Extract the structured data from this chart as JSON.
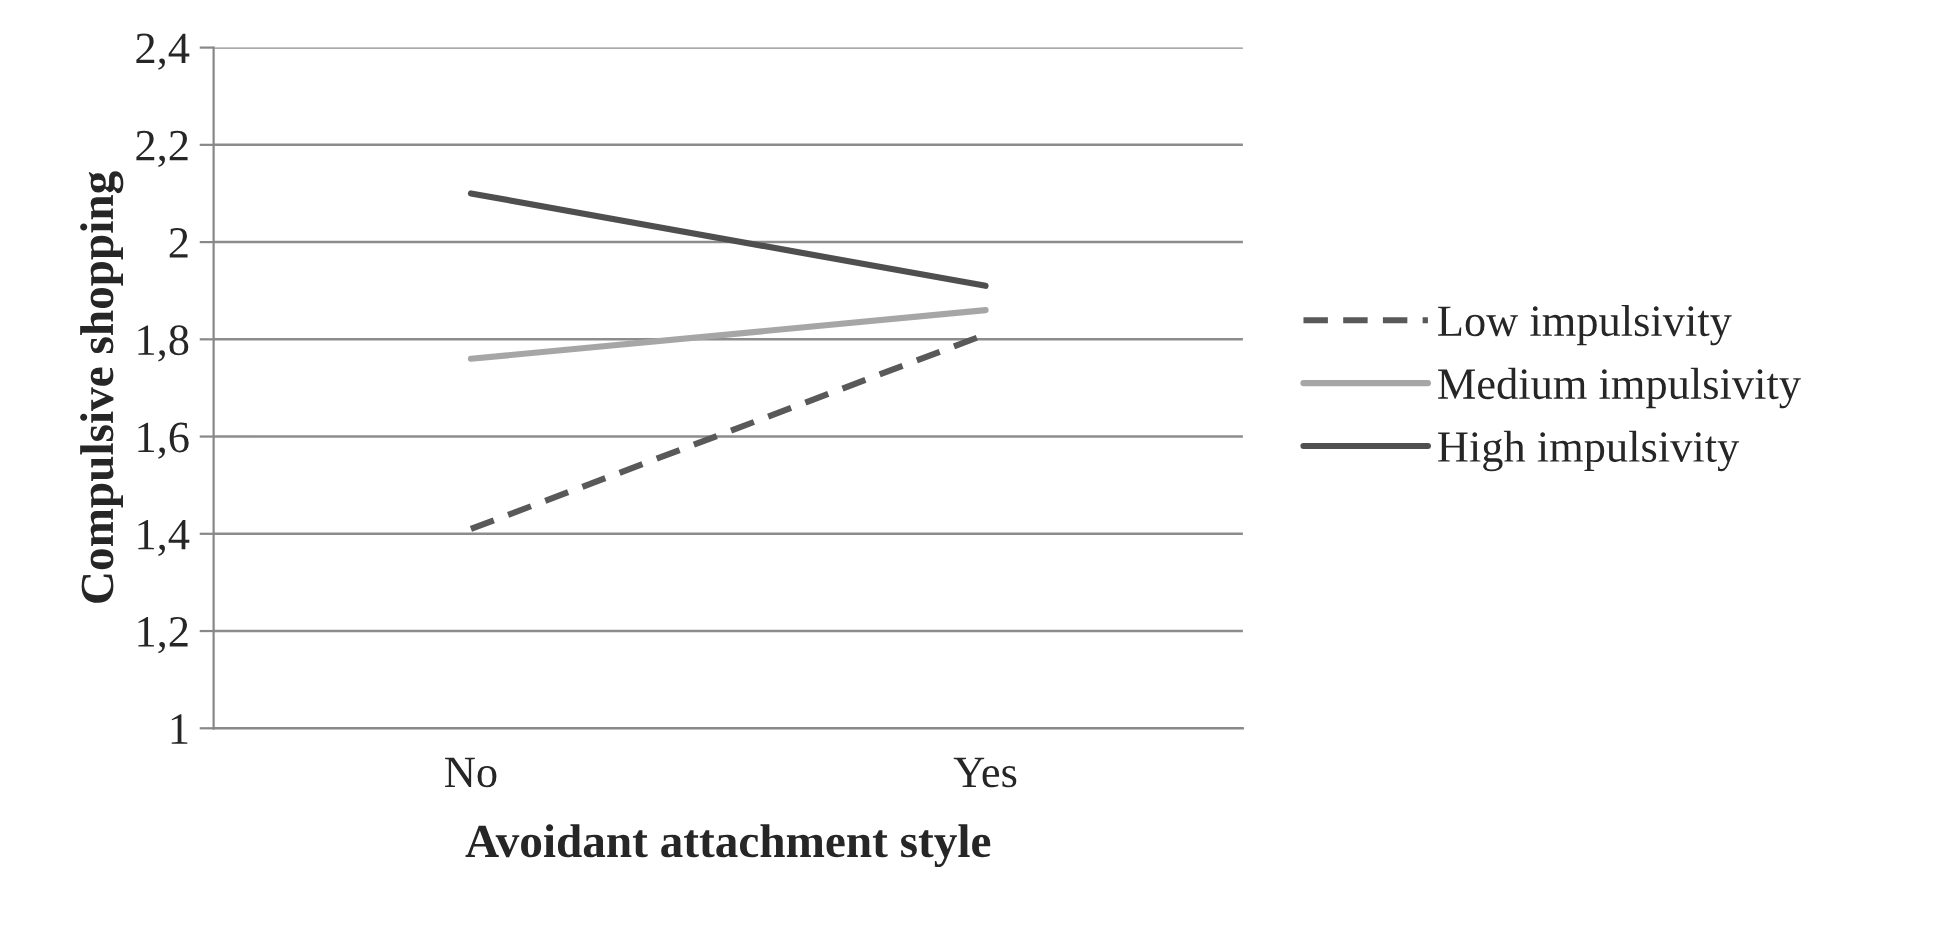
{
  "chart_data": {
    "type": "line",
    "xlabel": "Avoidant attachment style",
    "ylabel": "Compulsive shopping",
    "categories": [
      "No",
      "Yes"
    ],
    "series": [
      {
        "name": "Low impulsivity",
        "color": "#595959",
        "line_style": "dashed",
        "values": [
          1.41,
          1.81
        ]
      },
      {
        "name": "Medium impulsivity",
        "color": "#a6a6a6",
        "line_style": "solid",
        "values": [
          1.76,
          1.86
        ]
      },
      {
        "name": "High impulsivity",
        "color": "#4f4f4f",
        "line_style": "solid",
        "values": [
          2.1,
          1.91
        ]
      }
    ],
    "ylim": [
      1,
      2.4
    ],
    "yticks": [
      1,
      {
        "value": 1.2,
        "label": "1,2"
      },
      {
        "value": 1.4,
        "label": "1,4"
      },
      {
        "value": 1.6,
        "label": "1,6"
      },
      {
        "value": 1.8,
        "label": "1,8"
      },
      2,
      {
        "value": 2.2,
        "label": "2,2"
      },
      {
        "value": 2.4,
        "label": "2,4"
      }
    ],
    "grid": "y",
    "legend": "right",
    "marker": "none"
  }
}
